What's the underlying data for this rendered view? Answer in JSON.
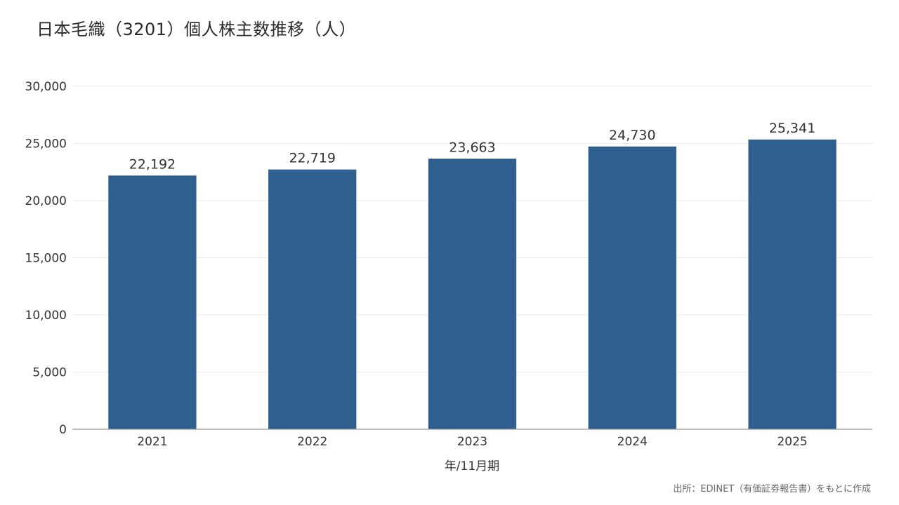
{
  "title": "日本毛織（3201）個人株主数推移（人）",
  "source": "出所：EDINET（有価証券報告書）をもとに作成",
  "colors": {
    "bar": "#2f5f8f",
    "grid": "#e8e8e8",
    "axis": "#999999",
    "text": "#333333"
  },
  "chart_data": {
    "type": "bar",
    "title": "日本毛織（3201）個人株主数推移（人）",
    "xlabel": "年/11月期",
    "ylabel": "",
    "categories": [
      "2021",
      "2022",
      "2023",
      "2024",
      "2025"
    ],
    "values": [
      22192,
      22719,
      23663,
      24730,
      25341
    ],
    "value_labels": [
      "22,192",
      "22,719",
      "23,663",
      "24,730",
      "25,341"
    ],
    "ylim": [
      0,
      30000
    ],
    "yticks": [
      0,
      5000,
      10000,
      15000,
      20000,
      25000,
      30000
    ],
    "ytick_labels": [
      "0",
      "5,000",
      "10,000",
      "15,000",
      "20,000",
      "25,000",
      "30,000"
    ],
    "grid": true,
    "legend": "none"
  }
}
